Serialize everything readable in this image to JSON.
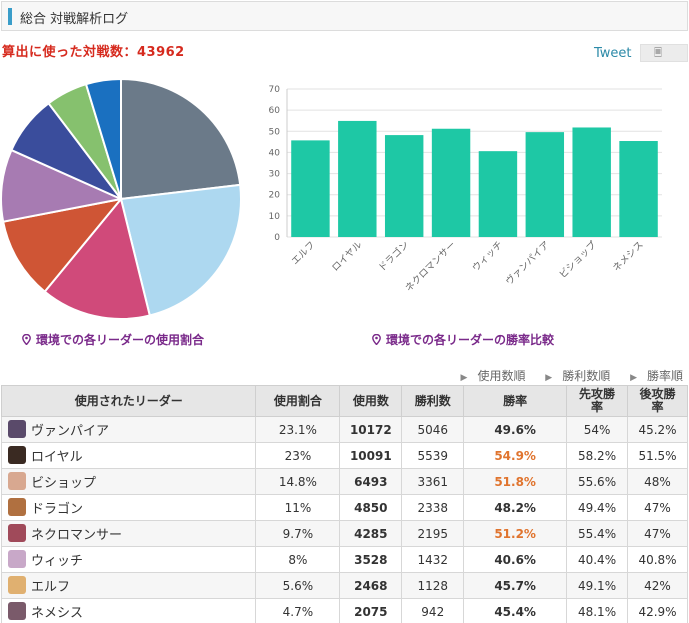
{
  "header": {
    "title": "総合 対戦解析ログ"
  },
  "summary": {
    "battle_count_label": "算出に使った対戦数：43962"
  },
  "social": {
    "tweet_label": "Tweet",
    "share_icon": "document-icon"
  },
  "captions": {
    "usage": "環境での各リーダーの使用割合",
    "winrate": "環境での各リーダーの勝率比較"
  },
  "sort": {
    "arrow_icon": "triangle-right-icon",
    "links": [
      "使用数順",
      "勝利数順",
      "勝率順"
    ]
  },
  "table": {
    "headers": {
      "leader": "使用されたリーダー",
      "share": "使用割合",
      "uses": "使用数",
      "wins": "勝利数",
      "rate": "勝率",
      "first": "先攻勝\n率",
      "second": "後攻勝\n率"
    },
    "rows": [
      {
        "name": "ヴァンパイア",
        "share": "23.1%",
        "uses": "10172",
        "wins": "5046",
        "rate": "49.6%",
        "first": "54%",
        "second": "45.2%",
        "highlight": false,
        "avatar_color": "#5a4a6a"
      },
      {
        "name": "ロイヤル",
        "share": "23%",
        "uses": "10091",
        "wins": "5539",
        "rate": "54.9%",
        "first": "58.2%",
        "second": "51.5%",
        "highlight": true,
        "avatar_color": "#3a2a22"
      },
      {
        "name": "ビショップ",
        "share": "14.8%",
        "uses": "6493",
        "wins": "3361",
        "rate": "51.8%",
        "first": "55.6%",
        "second": "48%",
        "highlight": true,
        "avatar_color": "#d8a890"
      },
      {
        "name": "ドラゴン",
        "share": "11%",
        "uses": "4850",
        "wins": "2338",
        "rate": "48.2%",
        "first": "49.4%",
        "second": "47%",
        "highlight": false,
        "avatar_color": "#b07040"
      },
      {
        "name": "ネクロマンサー",
        "share": "9.7%",
        "uses": "4285",
        "wins": "2195",
        "rate": "51.2%",
        "first": "55.4%",
        "second": "47%",
        "highlight": true,
        "avatar_color": "#a04a5a"
      },
      {
        "name": "ウィッチ",
        "share": "8%",
        "uses": "3528",
        "wins": "1432",
        "rate": "40.6%",
        "first": "40.4%",
        "second": "40.8%",
        "highlight": false,
        "avatar_color": "#c8a8c8"
      },
      {
        "name": "エルフ",
        "share": "5.6%",
        "uses": "2468",
        "wins": "1128",
        "rate": "45.7%",
        "first": "49.1%",
        "second": "42%",
        "highlight": false,
        "avatar_color": "#e0b070"
      },
      {
        "name": "ネメシス",
        "share": "4.7%",
        "uses": "2075",
        "wins": "942",
        "rate": "45.4%",
        "first": "48.1%",
        "second": "42.9%",
        "highlight": false,
        "avatar_color": "#7a5a6a"
      }
    ]
  },
  "chart_data": [
    {
      "type": "pie",
      "title": "",
      "slices": [
        {
          "label": "ヴァンパイア",
          "value": 23.1,
          "color": "#6b7a89"
        },
        {
          "label": "ロイヤル",
          "value": 23.0,
          "color": "#add8f0"
        },
        {
          "label": "ビショップ",
          "value": 14.8,
          "color": "#d04a7a"
        },
        {
          "label": "ドラゴン",
          "value": 11.0,
          "color": "#cf5535"
        },
        {
          "label": "ネクロマンサー",
          "value": 9.7,
          "color": "#a77bb2"
        },
        {
          "label": "ウィッチ",
          "value": 8.0,
          "color": "#3a4d9c"
        },
        {
          "label": "エルフ",
          "value": 5.6,
          "color": "#86c16e"
        },
        {
          "label": "ネメシス",
          "value": 4.7,
          "color": "#1a70c0"
        }
      ]
    },
    {
      "type": "bar",
      "title": "",
      "xlabel": "",
      "ylabel": "",
      "ylim": [
        0,
        70
      ],
      "yticks": [
        0,
        10,
        20,
        30,
        40,
        50,
        60,
        70
      ],
      "grid": true,
      "color": "#1ec8a5",
      "categories": [
        "エルフ",
        "ロイヤル",
        "ドラゴン",
        "ネクロマンサー",
        "ウィッチ",
        "ヴァンパイア",
        "ビショップ",
        "ネメシス"
      ],
      "values": [
        45.7,
        54.9,
        48.2,
        51.2,
        40.6,
        49.6,
        51.8,
        45.4
      ]
    }
  ]
}
